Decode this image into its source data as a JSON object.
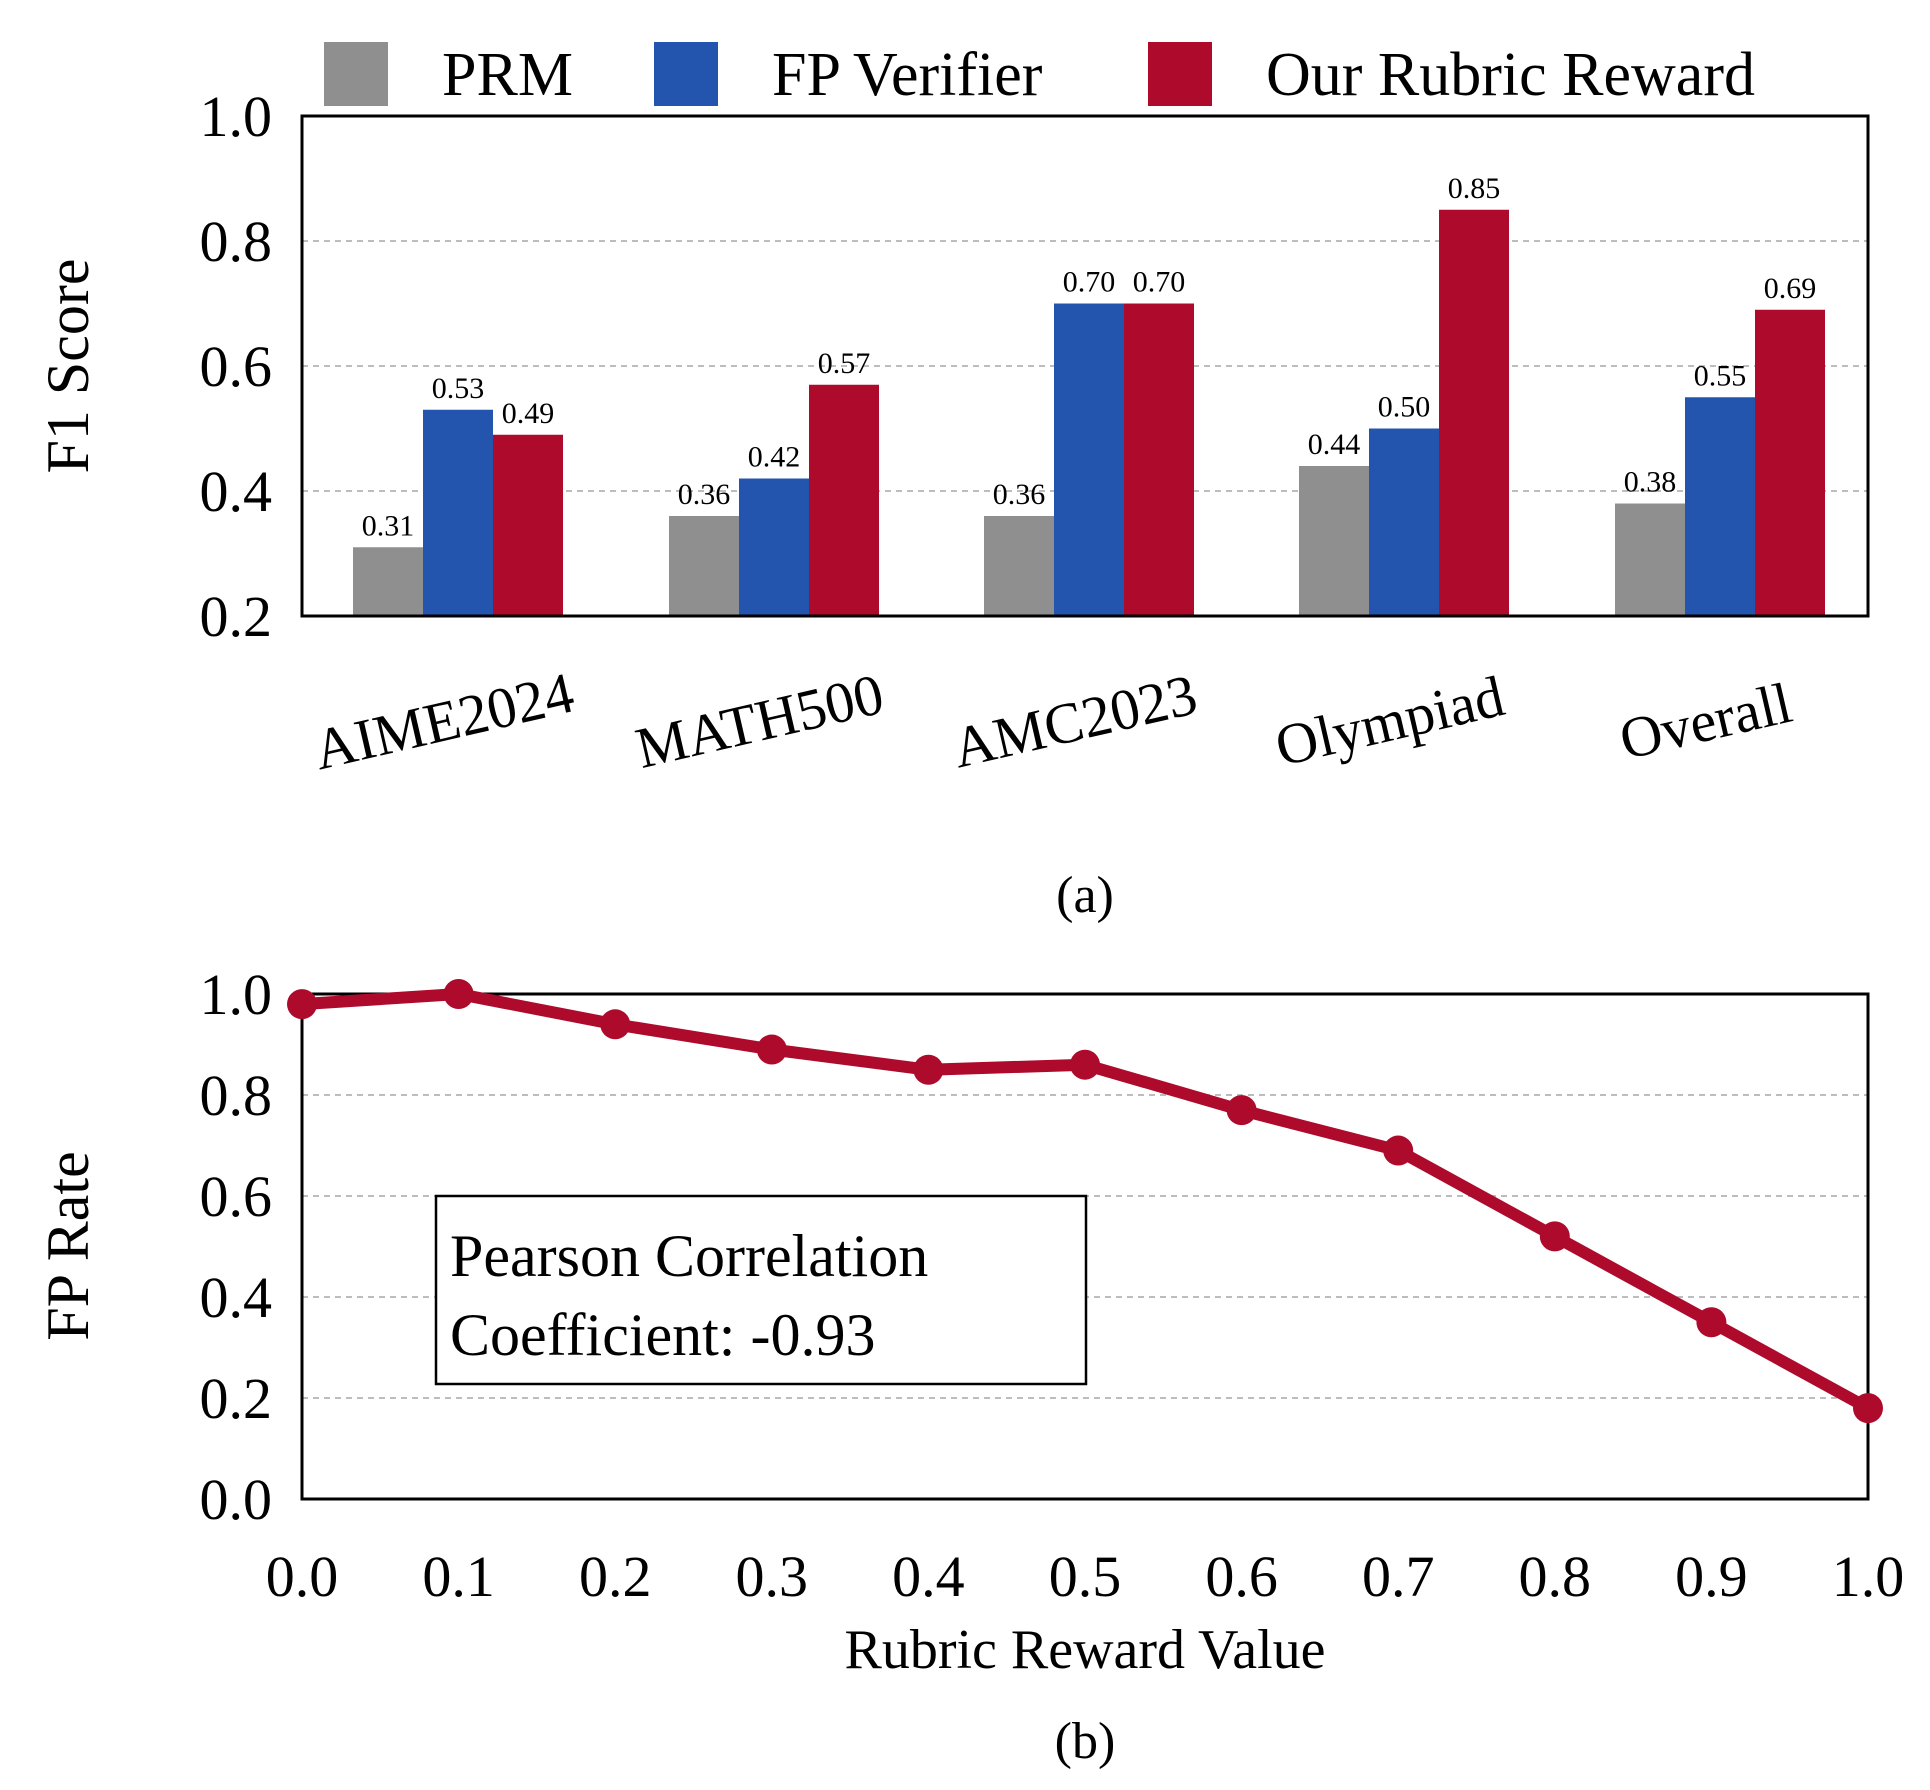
{
  "chart_data": [
    {
      "type": "bar",
      "subtitle": "(a)",
      "xlabel": "",
      "ylabel": "F1 Score",
      "ylim": [
        0.2,
        1.0
      ],
      "yticks": [
        "0.2",
        "0.4",
        "0.6",
        "0.8",
        "1.0"
      ],
      "grid": "horizontal dashed",
      "legend_position": "top",
      "categories": [
        "AIME2024",
        "MATH500",
        "AMC2023",
        "Olympiad",
        "Overall"
      ],
      "series": [
        {
          "name": "PRM",
          "color": "#8f8f8f",
          "values": [
            0.31,
            0.36,
            0.36,
            0.44,
            0.38
          ]
        },
        {
          "name": "FP Verifier",
          "color": "#2455ae",
          "values": [
            0.53,
            0.42,
            0.7,
            0.5,
            0.55
          ]
        },
        {
          "name": "Our Rubric Reward",
          "color": "#ad0a2c",
          "values": [
            0.49,
            0.57,
            0.7,
            0.85,
            0.69
          ]
        }
      ]
    },
    {
      "type": "line",
      "subtitle": "(b)",
      "xlabel": "Rubric Reward Value",
      "ylabel": "FP Rate",
      "xlim": [
        0.0,
        1.0
      ],
      "ylim": [
        0.0,
        1.0
      ],
      "xticks": [
        "0.0",
        "0.1",
        "0.2",
        "0.3",
        "0.4",
        "0.5",
        "0.6",
        "0.7",
        "0.8",
        "0.9",
        "1.0"
      ],
      "yticks": [
        "0.0",
        "0.2",
        "0.4",
        "0.6",
        "0.8",
        "1.0"
      ],
      "grid": "horizontal dashed",
      "color": "#ad0a2c",
      "x": [
        0.0,
        0.1,
        0.2,
        0.3,
        0.4,
        0.5,
        0.6,
        0.7,
        0.8,
        0.9,
        1.0
      ],
      "y": [
        0.98,
        1.0,
        0.94,
        0.89,
        0.85,
        0.86,
        0.77,
        0.69,
        0.52,
        0.35,
        0.18
      ],
      "annotation": [
        "Pearson Correlation",
        "Coefficient: -0.93"
      ]
    }
  ]
}
